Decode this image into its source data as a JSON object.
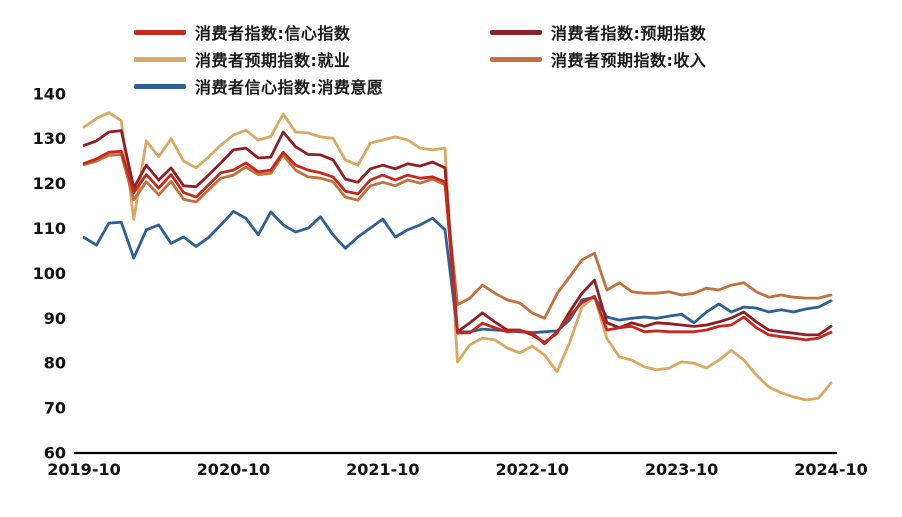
{
  "chart_data": {
    "type": "line",
    "title": "",
    "grid": false,
    "background": "#ffffff",
    "legend_position": "top",
    "legend_order": [
      "confidence",
      "expectation",
      "employment",
      "income",
      "willingness"
    ],
    "z_order": [
      "employment",
      "income",
      "willingness",
      "expectation",
      "confidence"
    ],
    "axis_color": "#000000",
    "y_axis": {
      "ylim": [
        60,
        140
      ],
      "ticks": [
        140,
        130,
        120,
        110,
        100,
        90,
        80,
        70,
        60
      ]
    },
    "x_axis": {
      "tick_labels": [
        "2019-10",
        "2020-10",
        "2021-10",
        "2022-10",
        "2023-10",
        "2024-10"
      ],
      "months": [
        "2019-10",
        "2019-11",
        "2019-12",
        "2020-01",
        "2020-02",
        "2020-03",
        "2020-04",
        "2020-05",
        "2020-06",
        "2020-07",
        "2020-08",
        "2020-09",
        "2020-10",
        "2020-11",
        "2020-12",
        "2021-01",
        "2021-02",
        "2021-03",
        "2021-04",
        "2021-05",
        "2021-06",
        "2021-07",
        "2021-08",
        "2021-09",
        "2021-10",
        "2021-11",
        "2021-12",
        "2022-01",
        "2022-02",
        "2022-03",
        "2022-04",
        "2022-05",
        "2022-06",
        "2022-07",
        "2022-08",
        "2022-09",
        "2022-10",
        "2022-11",
        "2022-12",
        "2023-01",
        "2023-02",
        "2023-03",
        "2023-04",
        "2023-05",
        "2023-06",
        "2023-07",
        "2023-08",
        "2023-09",
        "2023-10",
        "2023-11",
        "2023-12",
        "2024-01",
        "2024-02",
        "2024-03",
        "2024-04",
        "2024-05",
        "2024-06",
        "2024-07",
        "2024-08",
        "2024-09",
        "2024-10"
      ]
    },
    "series": [
      {
        "key": "confidence",
        "name": "消费者指数:信心指数",
        "color": "#c5281c",
        "values": [
          124.5,
          125.5,
          127,
          127.2,
          118,
          122,
          119,
          122,
          118,
          117,
          119.7,
          122.4,
          123,
          124.6,
          122.6,
          123,
          127,
          124.1,
          123,
          122.4,
          121.5,
          118.3,
          117.7,
          120.8,
          121.9,
          120.8,
          121.9,
          121.2,
          121.5,
          120.4,
          86.7,
          86.8,
          88.9,
          87.9,
          87,
          87.2,
          86.8,
          84.3,
          87,
          90.5,
          93.5,
          94.9,
          87.4,
          87.9,
          88.2,
          87,
          87.2,
          87,
          87,
          87,
          87.4,
          88.2,
          88.5,
          90.3,
          87.9,
          86.3,
          85.9,
          85.6,
          85.2,
          85.6,
          86.9
        ]
      },
      {
        "key": "expectation",
        "name": "消费者指数:预期指数",
        "color": "#8e1f24",
        "values": [
          128.5,
          129.5,
          131.5,
          131.8,
          119,
          124.1,
          120.8,
          123.5,
          119.5,
          119.3,
          121.9,
          124.6,
          127.5,
          127.9,
          125.7,
          125.9,
          131.5,
          128.2,
          126.5,
          126.4,
          125.3,
          121,
          120.3,
          123.3,
          124.1,
          123.3,
          124.4,
          123.9,
          124.8,
          123.5,
          87,
          89,
          91.2,
          89.2,
          87.4,
          87.4,
          86.3,
          84.6,
          86.7,
          91.4,
          95.6,
          98.5,
          89,
          87.9,
          89,
          88.2,
          89,
          88.8,
          88.5,
          88.2,
          88.5,
          89.2,
          90.1,
          91.4,
          89.2,
          87.4,
          87,
          86.7,
          86.3,
          86.3,
          88.2
        ]
      },
      {
        "key": "employment",
        "name": "消费者预期指数:就业",
        "color": "#d9a964",
        "values": [
          132.6,
          134.5,
          135.8,
          134,
          112,
          129.5,
          126,
          130,
          125,
          123.5,
          125.9,
          128.6,
          130.8,
          131.9,
          129.7,
          130.5,
          135.5,
          131.5,
          131.3,
          130.4,
          130.1,
          125.3,
          124.1,
          129,
          129.7,
          130.4,
          129.7,
          127.9,
          127.5,
          127.9,
          80.3,
          84.1,
          85.6,
          85.2,
          83.4,
          82.3,
          83.8,
          81.8,
          78.1,
          84.5,
          92.5,
          94.8,
          85.5,
          81.4,
          80.7,
          79.2,
          78.5,
          78.9,
          80.3,
          80,
          78.9,
          80.7,
          82.9,
          80.7,
          77.4,
          74.7,
          73.4,
          72.5,
          71.8,
          72.2,
          75.6
        ]
      },
      {
        "key": "income",
        "name": "消费者预期指数:收入",
        "color": "#c2703d",
        "values": [
          124.2,
          125,
          126.3,
          126.5,
          116.4,
          120.4,
          117.5,
          120.5,
          116.5,
          115.9,
          118.6,
          121.2,
          121.9,
          123.7,
          122,
          122.3,
          126.4,
          123,
          121.5,
          121.2,
          120.4,
          117,
          116.3,
          119.5,
          120.3,
          119.5,
          120.8,
          120.1,
          121,
          119.7,
          93,
          94.5,
          97.4,
          95.6,
          94.1,
          93.4,
          91.2,
          90,
          95.5,
          99.2,
          103,
          104.5,
          96.3,
          97.9,
          95.9,
          95.6,
          95.6,
          95.9,
          95.2,
          95.6,
          96.7,
          96.3,
          97.4,
          97.9,
          95.9,
          94.7,
          95.2,
          94.7,
          94.5,
          94.5,
          95.2
        ]
      },
      {
        "key": "willingness",
        "name": "消费者信心指数:消费意愿",
        "color": "#2e6096",
        "values": [
          108,
          106.3,
          111.2,
          111.4,
          103.4,
          109.7,
          110.8,
          106.7,
          108.1,
          106,
          108,
          110.8,
          113.8,
          112.3,
          108.6,
          113.7,
          110.8,
          109.2,
          110.1,
          112.6,
          108.6,
          105.6,
          108.1,
          110.1,
          112.1,
          108.1,
          109.7,
          110.8,
          112.3,
          109.7,
          87,
          87,
          87.6,
          87.4,
          87.2,
          87,
          86.8,
          87,
          87.2,
          89.6,
          94.1,
          94.7,
          90.3,
          89.6,
          90,
          90.3,
          90,
          90.5,
          90.9,
          89,
          91.4,
          93.2,
          91.4,
          92.5,
          92.3,
          91.4,
          91.9,
          91.4,
          92.1,
          92.5,
          93.9
        ]
      }
    ]
  }
}
